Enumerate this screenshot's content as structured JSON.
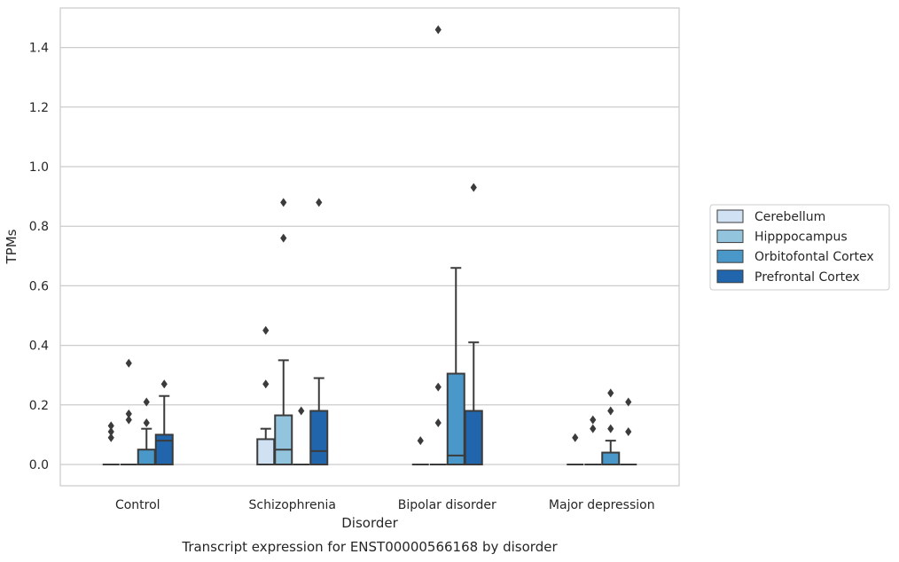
{
  "chart_data": {
    "type": "box",
    "caption": "Transcript expression for ENST00000566168 by disorder",
    "xlabel": "Disorder",
    "ylabel": "TPMs",
    "ylim": [
      -0.07,
      1.53
    ],
    "yticks": [
      "0.0",
      "0.2",
      "0.4",
      "0.6",
      "0.8",
      "1.0",
      "1.2",
      "1.4"
    ],
    "grid": "horizontal",
    "legend_position": "right",
    "categories": [
      "Control",
      "Schizophrenia",
      "Bipolar disorder",
      "Major depression"
    ],
    "series": [
      {
        "name": "Cerebellum",
        "color": "#cfe1f2",
        "boxes": [
          {
            "q1": 0.0,
            "median": 0.0,
            "q3": 0.0,
            "whislo": 0.0,
            "whishi": 0.0,
            "fliers": [
              0.09,
              0.11,
              0.13
            ]
          },
          {
            "q1": 0.0,
            "median": 0.0,
            "q3": 0.085,
            "whislo": 0.0,
            "whishi": 0.12,
            "fliers": [
              0.27,
              0.45
            ]
          },
          {
            "q1": 0.0,
            "median": 0.0,
            "q3": 0.0,
            "whislo": 0.0,
            "whishi": 0.0,
            "fliers": [
              0.08
            ]
          },
          {
            "q1": 0.0,
            "median": 0.0,
            "q3": 0.0,
            "whislo": 0.0,
            "whishi": 0.0,
            "fliers": [
              0.09
            ]
          }
        ]
      },
      {
        "name": "Hipppocampus",
        "color": "#93c4de",
        "boxes": [
          {
            "q1": 0.0,
            "median": 0.0,
            "q3": 0.0,
            "whislo": 0.0,
            "whishi": 0.0,
            "fliers": [
              0.15,
              0.17,
              0.34
            ]
          },
          {
            "q1": 0.0,
            "median": 0.05,
            "q3": 0.165,
            "whislo": 0.0,
            "whishi": 0.35,
            "fliers": [
              0.76,
              0.88
            ]
          },
          {
            "q1": 0.0,
            "median": 0.0,
            "q3": 0.0,
            "whislo": 0.0,
            "whishi": 0.0,
            "fliers": [
              0.14,
              0.26,
              1.46
            ]
          },
          {
            "q1": 0.0,
            "median": 0.0,
            "q3": 0.0,
            "whislo": 0.0,
            "whishi": 0.0,
            "fliers": [
              0.12,
              0.15
            ]
          }
        ]
      },
      {
        "name": "Orbitofontal Cortex",
        "color": "#4a98c9",
        "boxes": [
          {
            "q1": 0.0,
            "median": 0.0,
            "q3": 0.05,
            "whislo": 0.0,
            "whishi": 0.12,
            "fliers": [
              0.14,
              0.21
            ]
          },
          {
            "q1": 0.0,
            "median": 0.0,
            "q3": 0.0,
            "whislo": 0.0,
            "whishi": 0.0,
            "fliers": [
              0.18
            ]
          },
          {
            "q1": 0.0,
            "median": 0.03,
            "q3": 0.305,
            "whislo": 0.0,
            "whishi": 0.66,
            "fliers": []
          },
          {
            "q1": 0.0,
            "median": 0.0,
            "q3": 0.04,
            "whislo": 0.0,
            "whishi": 0.08,
            "fliers": [
              0.12,
              0.18,
              0.24
            ]
          }
        ]
      },
      {
        "name": "Prefrontal Cortex",
        "color": "#2166ac",
        "boxes": [
          {
            "q1": 0.0,
            "median": 0.08,
            "q3": 0.1,
            "whislo": 0.0,
            "whishi": 0.23,
            "fliers": [
              0.27
            ]
          },
          {
            "q1": 0.0,
            "median": 0.045,
            "q3": 0.18,
            "whislo": 0.0,
            "whishi": 0.29,
            "fliers": [
              0.88
            ]
          },
          {
            "q1": 0.0,
            "median": 0.0,
            "q3": 0.18,
            "whislo": 0.0,
            "whishi": 0.41,
            "fliers": [
              0.93
            ]
          },
          {
            "q1": 0.0,
            "median": 0.0,
            "q3": 0.0,
            "whislo": 0.0,
            "whishi": 0.0,
            "fliers": [
              0.11,
              0.21
            ]
          }
        ]
      }
    ]
  }
}
